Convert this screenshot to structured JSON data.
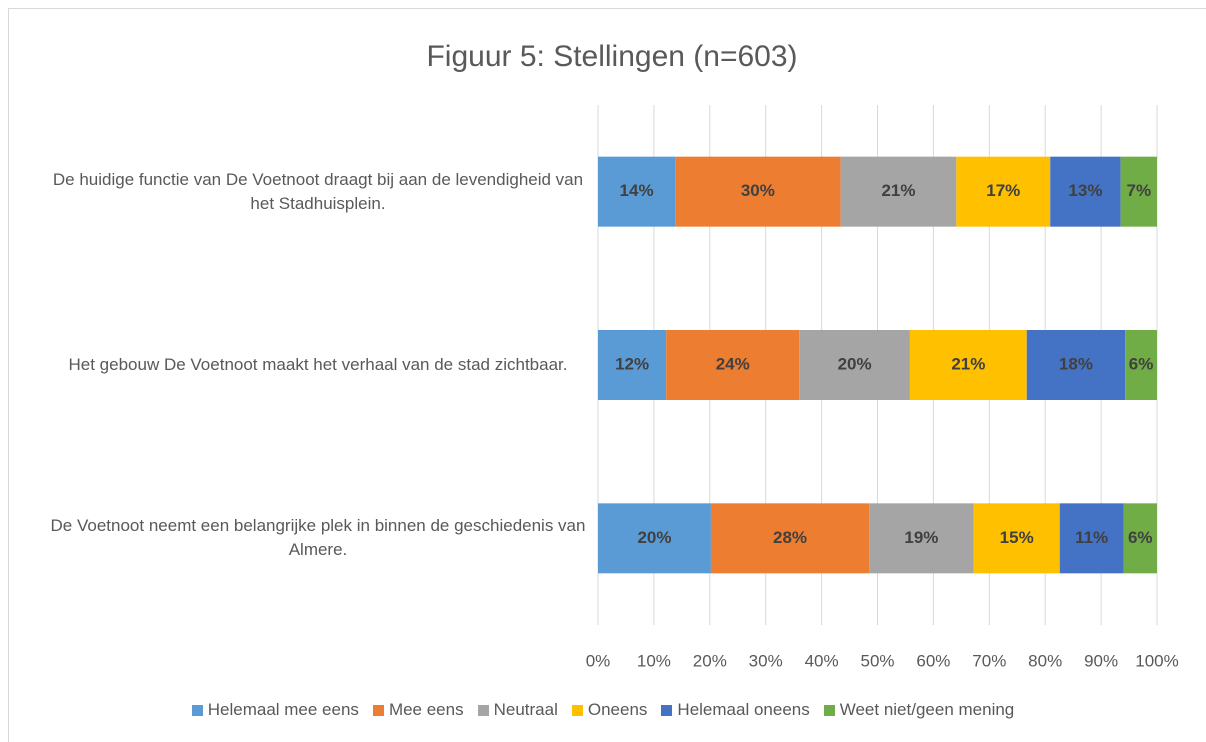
{
  "chart_data": {
    "type": "stacked_barh",
    "title": "Figuur 5: Stellingen (n=603)",
    "categories": [
      "De huidige functie van De Voetnoot draagt bij aan de levendigheid van het Stadhuisplein.",
      "Het gebouw De Voetnoot maakt het verhaal van de stad zichtbaar.",
      "De Voetnoot neemt een belangrijke plek in binnen de geschiedenis van Almere."
    ],
    "series": [
      {
        "name": "Helemaal mee eens",
        "color": "#5b9bd5",
        "values": [
          13.8,
          12.2,
          20.2
        ],
        "value_labels": [
          "14%",
          "12%",
          "20%"
        ]
      },
      {
        "name": "Mee eens",
        "color": "#ed7d31",
        "values": [
          29.6,
          23.8,
          28.3
        ],
        "value_labels": [
          "30%",
          "24%",
          "28%"
        ]
      },
      {
        "name": "Neutraal",
        "color": "#a5a5a5",
        "values": [
          20.7,
          19.8,
          18.7
        ],
        "value_labels": [
          "21%",
          "20%",
          "19%"
        ]
      },
      {
        "name": "Oneens",
        "color": "#ffc000",
        "values": [
          16.8,
          20.9,
          15.4
        ],
        "value_labels": [
          "17%",
          "21%",
          "15%"
        ]
      },
      {
        "name": "Helemaal oneens",
        "color": "#4472c4",
        "values": [
          12.6,
          17.6,
          11.4
        ],
        "value_labels": [
          "13%",
          "18%",
          "11%"
        ]
      },
      {
        "name": "Weet niet/geen mening",
        "color": "#70ad47",
        "values": [
          6.5,
          5.7,
          6.0
        ],
        "value_labels": [
          "7%",
          "6%",
          "6%"
        ]
      }
    ],
    "xlim": [
      0,
      100
    ],
    "xticks": [
      {
        "value": 0,
        "label": "0%"
      },
      {
        "value": 10,
        "label": "10%"
      },
      {
        "value": 20,
        "label": "20%"
      },
      {
        "value": 30,
        "label": "30%"
      },
      {
        "value": 40,
        "label": "40%"
      },
      {
        "value": 50,
        "label": "50%"
      },
      {
        "value": 60,
        "label": "60%"
      },
      {
        "value": 70,
        "label": "70%"
      },
      {
        "value": 80,
        "label": "80%"
      },
      {
        "value": 90,
        "label": "90%"
      },
      {
        "value": 100,
        "label": "100%"
      }
    ],
    "grid": true,
    "legend": "bottom"
  }
}
